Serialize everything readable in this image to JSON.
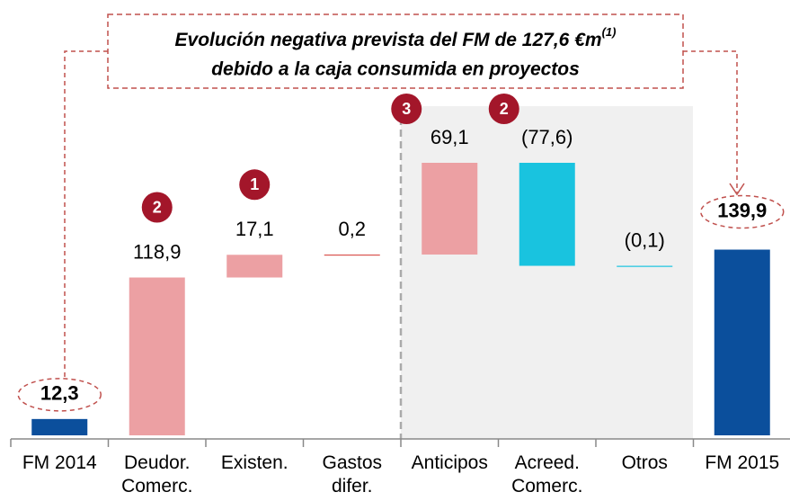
{
  "chart_data": {
    "type": "waterfall",
    "title": [
      "Evolución negativa prevista del FM de 127,6 €m",
      "debido a la caja consumida en proyectos"
    ],
    "title_note": "(1)",
    "categories": [
      [
        "FM 2014"
      ],
      [
        "Deudor.",
        "Comerc."
      ],
      [
        "Existen."
      ],
      [
        "Gastos",
        "difer."
      ],
      [
        "Anticipos"
      ],
      [
        "Acreed.",
        "Comerc."
      ],
      [
        "Otros"
      ],
      [
        "FM 2015"
      ]
    ],
    "values": [
      12.3,
      118.9,
      17.1,
      0.2,
      69.1,
      -77.6,
      -0.1,
      139.9
    ],
    "value_labels": [
      "12,3",
      "118,9",
      "17,1",
      "0,2",
      "69,1",
      "(77,6)",
      "(0,1)",
      "139,9"
    ],
    "is_total": [
      true,
      false,
      false,
      false,
      false,
      false,
      false,
      true
    ],
    "badges": [
      null,
      "2",
      "1",
      null,
      "3",
      "2",
      null,
      null
    ],
    "colors": {
      "total": "#0b4f9c",
      "increase": "#eca0a3",
      "decrease": "#19c3df"
    }
  }
}
